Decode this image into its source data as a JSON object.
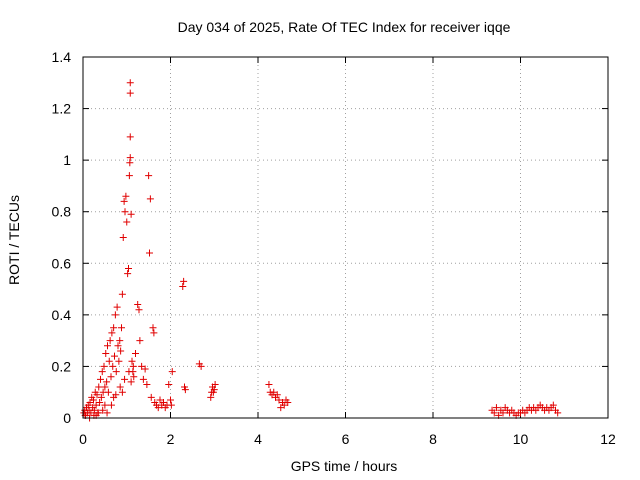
{
  "chart_data": {
    "type": "scatter",
    "title": "Day 034 of 2025, Rate Of TEC Index for receiver iqqe",
    "xlabel": "GPS time / hours",
    "ylabel": "ROTI / TECUs",
    "xlim": [
      0,
      12
    ],
    "ylim": [
      0,
      1.4
    ],
    "xticks": [
      0,
      2,
      4,
      6,
      8,
      10,
      12
    ],
    "xtick_labels": [
      "0",
      "2",
      "4",
      "6",
      "8",
      "10",
      "12"
    ],
    "yticks": [
      0,
      0.2,
      0.4,
      0.6,
      0.8,
      1.0,
      1.2,
      1.4
    ],
    "ytick_labels": [
      "0",
      "0.2",
      "0.4",
      "0.6",
      "0.8",
      "1",
      "1.2",
      "1.4"
    ],
    "grid": true,
    "marker": "+",
    "color": "#e00000",
    "series": [
      {
        "name": "ROTI",
        "points": [
          [
            0.02,
            0.02
          ],
          [
            0.04,
            0.03
          ],
          [
            0.06,
            0.01
          ],
          [
            0.08,
            0.04
          ],
          [
            0.1,
            0.02
          ],
          [
            0.12,
            0.05
          ],
          [
            0.14,
            0.03
          ],
          [
            0.16,
            0.06
          ],
          [
            0.18,
            0.02
          ],
          [
            0.2,
            0.08
          ],
          [
            0.22,
            0.04
          ],
          [
            0.24,
            0.07
          ],
          [
            0.26,
            0.03
          ],
          [
            0.28,
            0.1
          ],
          [
            0.3,
            0.05
          ],
          [
            0.32,
            0.09
          ],
          [
            0.34,
            0.02
          ],
          [
            0.36,
            0.12
          ],
          [
            0.38,
            0.06
          ],
          [
            0.4,
            0.15
          ],
          [
            0.42,
            0.08
          ],
          [
            0.44,
            0.18
          ],
          [
            0.46,
            0.1
          ],
          [
            0.48,
            0.2
          ],
          [
            0.5,
            0.12
          ],
          [
            0.52,
            0.25
          ],
          [
            0.54,
            0.14
          ],
          [
            0.56,
            0.28
          ],
          [
            0.58,
            0.1
          ],
          [
            0.6,
            0.22
          ],
          [
            0.62,
            0.3
          ],
          [
            0.64,
            0.16
          ],
          [
            0.66,
            0.33
          ],
          [
            0.68,
            0.2
          ],
          [
            0.7,
            0.35
          ],
          [
            0.72,
            0.24
          ],
          [
            0.74,
            0.4
          ],
          [
            0.76,
            0.18
          ],
          [
            0.78,
            0.43
          ],
          [
            0.8,
            0.28
          ],
          [
            0.82,
            0.22
          ],
          [
            0.84,
            0.3
          ],
          [
            0.86,
            0.26
          ],
          [
            0.88,
            0.35
          ],
          [
            0.9,
            0.48
          ],
          [
            0.92,
            0.7
          ],
          [
            0.94,
            0.84
          ],
          [
            0.96,
            0.8
          ],
          [
            0.98,
            0.86
          ],
          [
            1.0,
            0.76
          ],
          [
            1.02,
            0.56
          ],
          [
            1.04,
            0.58
          ],
          [
            1.06,
            0.94
          ],
          [
            1.07,
            0.99
          ],
          [
            1.08,
            1.01
          ],
          [
            1.08,
            1.09
          ],
          [
            1.08,
            1.26
          ],
          [
            1.08,
            1.3
          ],
          [
            1.1,
            0.79
          ],
          [
            1.12,
            0.22
          ],
          [
            1.14,
            0.18
          ],
          [
            1.16,
            0.16
          ],
          [
            1.2,
            0.25
          ],
          [
            1.25,
            0.44
          ],
          [
            1.28,
            0.42
          ],
          [
            1.3,
            0.3
          ],
          [
            1.34,
            0.2
          ],
          [
            1.38,
            0.15
          ],
          [
            1.42,
            0.19
          ],
          [
            1.46,
            0.13
          ],
          [
            1.5,
            0.94
          ],
          [
            1.52,
            0.64
          ],
          [
            1.54,
            0.85
          ],
          [
            1.56,
            0.08
          ],
          [
            1.6,
            0.35
          ],
          [
            1.62,
            0.33
          ],
          [
            1.64,
            0.06
          ],
          [
            1.68,
            0.05
          ],
          [
            1.72,
            0.04
          ],
          [
            1.76,
            0.07
          ],
          [
            1.8,
            0.05
          ],
          [
            1.84,
            0.06
          ],
          [
            1.88,
            0.04
          ],
          [
            1.92,
            0.05
          ],
          [
            1.96,
            0.13
          ],
          [
            2.0,
            0.07
          ],
          [
            2.02,
            0.05
          ],
          [
            2.04,
            0.18
          ],
          [
            2.28,
            0.51
          ],
          [
            2.3,
            0.53
          ],
          [
            2.32,
            0.12
          ],
          [
            2.34,
            0.11
          ],
          [
            2.66,
            0.21
          ],
          [
            2.7,
            0.2
          ],
          [
            2.92,
            0.08
          ],
          [
            2.94,
            0.1
          ],
          [
            2.96,
            0.12
          ],
          [
            2.98,
            0.1
          ],
          [
            3.0,
            0.11
          ],
          [
            3.02,
            0.13
          ],
          [
            4.25,
            0.13
          ],
          [
            4.28,
            0.1
          ],
          [
            4.32,
            0.09
          ],
          [
            4.36,
            0.1
          ],
          [
            4.4,
            0.08
          ],
          [
            4.44,
            0.09
          ],
          [
            4.48,
            0.07
          ],
          [
            4.52,
            0.04
          ],
          [
            4.56,
            0.06
          ],
          [
            4.6,
            0.05
          ],
          [
            4.64,
            0.07
          ],
          [
            4.68,
            0.06
          ],
          [
            9.35,
            0.03
          ],
          [
            9.4,
            0.02
          ],
          [
            9.45,
            0.04
          ],
          [
            9.5,
            0.01
          ],
          [
            9.55,
            0.03
          ],
          [
            9.6,
            0.02
          ],
          [
            9.65,
            0.04
          ],
          [
            9.7,
            0.03
          ],
          [
            9.75,
            0.02
          ],
          [
            9.8,
            0.03
          ],
          [
            9.85,
            0.02
          ],
          [
            9.9,
            0.01
          ],
          [
            9.95,
            0.02
          ],
          [
            10.0,
            0.02
          ],
          [
            10.05,
            0.03
          ],
          [
            10.1,
            0.02
          ],
          [
            10.15,
            0.03
          ],
          [
            10.2,
            0.04
          ],
          [
            10.25,
            0.03
          ],
          [
            10.3,
            0.04
          ],
          [
            10.35,
            0.03
          ],
          [
            10.4,
            0.04
          ],
          [
            10.45,
            0.05
          ],
          [
            10.5,
            0.04
          ],
          [
            10.55,
            0.03
          ],
          [
            10.6,
            0.04
          ],
          [
            10.65,
            0.03
          ],
          [
            10.7,
            0.04
          ],
          [
            10.75,
            0.05
          ],
          [
            10.8,
            0.03
          ],
          [
            10.85,
            0.02
          ],
          [
            0.05,
            0.01
          ],
          [
            0.15,
            0.0
          ],
          [
            0.25,
            0.01
          ],
          [
            0.35,
            0.02
          ],
          [
            0.45,
            0.03
          ],
          [
            0.55,
            0.02
          ],
          [
            0.65,
            0.05
          ],
          [
            0.75,
            0.09
          ],
          [
            0.85,
            0.12
          ],
          [
            0.95,
            0.15
          ],
          [
            1.05,
            0.18
          ],
          [
            1.15,
            0.2
          ],
          [
            0.3,
            0.01
          ],
          [
            0.5,
            0.05
          ],
          [
            0.7,
            0.08
          ],
          [
            0.9,
            0.1
          ],
          [
            1.1,
            0.14
          ]
        ]
      }
    ]
  }
}
